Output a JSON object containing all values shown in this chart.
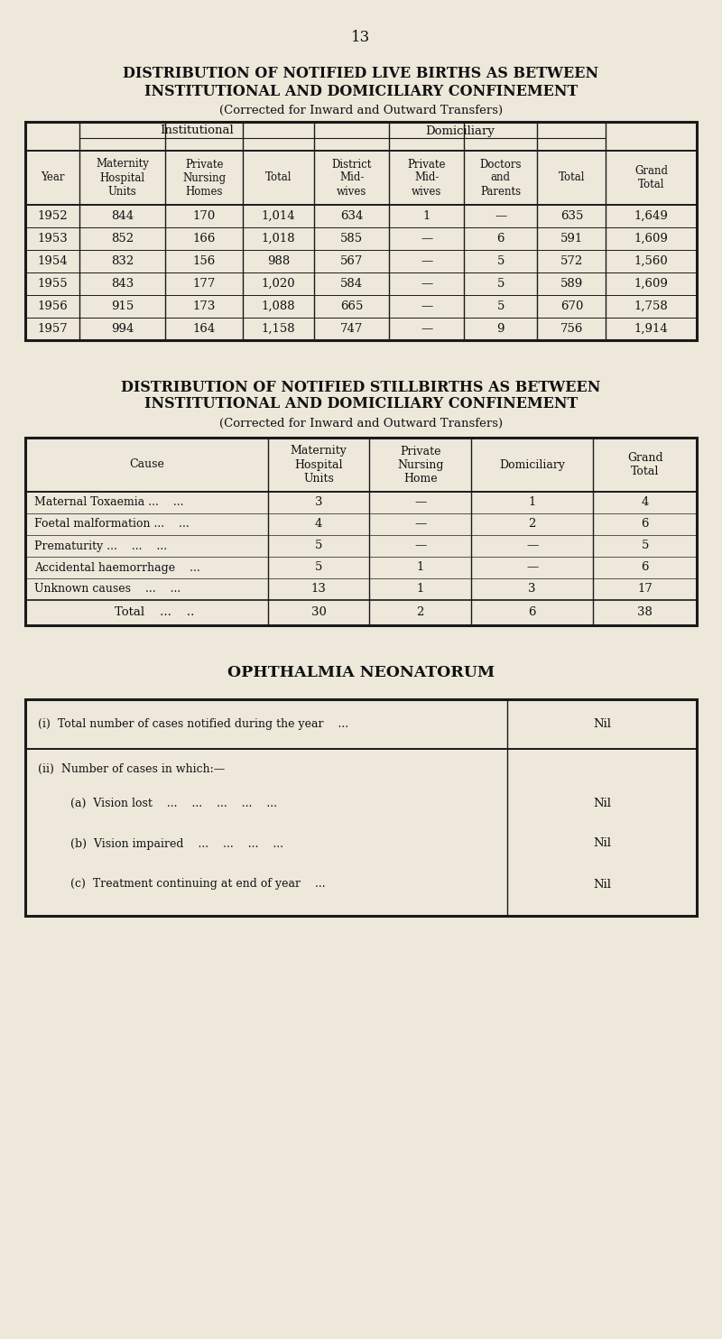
{
  "bg_color": "#ede8da",
  "page_number": "13",
  "table1": {
    "title1": "DISTRIBUTION OF NOTIFIED LIVE BIRTHS AS BETWEEN",
    "title2": "INSTITUTIONAL AND DOMICILIARY CONFINEMENT",
    "subtitle": "(Corrected for Inward and Outward Transfers)",
    "sub_header_institutional": "Institutional",
    "sub_header_domiciliary": "Domiciliary",
    "col_labels": [
      "Year",
      "Maternity\nHospital\nUnits",
      "Private\nNursing\nHomes",
      "Total",
      "District\nMid-\nwives",
      "Private\nMid-\nwives",
      "Doctors\nand\nParents",
      "Total",
      "Grand\nTotal"
    ],
    "rows": [
      [
        "1952",
        "844",
        "170",
        "1,014",
        "634",
        "1",
        "—",
        "635",
        "1,649"
      ],
      [
        "1953",
        "852",
        "166",
        "1,018",
        "585",
        "—",
        "6",
        "591",
        "1,609"
      ],
      [
        "1954",
        "832",
        "156",
        "988",
        "567",
        "—",
        "5",
        "572",
        "1,560"
      ],
      [
        "1955",
        "843",
        "177",
        "1,020",
        "584",
        "—",
        "5",
        "589",
        "1,609"
      ],
      [
        "1956",
        "915",
        "173",
        "1,088",
        "665",
        "—",
        "5",
        "670",
        "1,758"
      ],
      [
        "1957",
        "994",
        "164",
        "1,158",
        "747",
        "—",
        "9",
        "756",
        "1,914"
      ]
    ],
    "inst_span": [
      1,
      4
    ],
    "domi_span": [
      4,
      8
    ]
  },
  "table2": {
    "title1": "DISTRIBUTION OF NOTIFIED STILLBIRTHS AS BETWEEN",
    "title2": "INSTITUTIONAL AND DOMICILIARY CONFINEMENT",
    "subtitle": "(Corrected for Inward and Outward Transfers)",
    "col_labels": [
      "Cause",
      "Maternity\nHospital\nUnits",
      "Private\nNursing\nHome",
      "Domiciliary",
      "Grand\nTotal"
    ],
    "rows": [
      [
        "Maternal Toxaemia ...    ...",
        "3",
        "—",
        "1",
        "4"
      ],
      [
        "Foetal malformation ...    ...",
        "4",
        "—",
        "2",
        "6"
      ],
      [
        "Prematurity ...    ...    ...",
        "5",
        "—",
        "—",
        "5"
      ],
      [
        "Accidental haemorrhage    ...",
        "5",
        "1",
        "—",
        "6"
      ],
      [
        "Unknown causes    ...    ...",
        "13",
        "1",
        "3",
        "17"
      ]
    ],
    "total_row": [
      "    Total    ...    ..",
      "30",
      "2",
      "6",
      "38"
    ]
  },
  "table3": {
    "title": "OPHTHALMIA NEONATORUM",
    "row1_label": "(i)  Total number of cases notified during the year    ...",
    "row1_val": "Nil",
    "row2_header": "(ii)  Number of cases in which:—",
    "sub_items": [
      [
        "(a)  Vision lost    ...    ...    ...    ...    ...",
        "Nil"
      ],
      [
        "(b)  Vision impaired    ...    ...    ...    ...",
        "Nil"
      ],
      [
        "(c)  Treatment continuing at end of year    ...",
        "Nil"
      ]
    ]
  }
}
